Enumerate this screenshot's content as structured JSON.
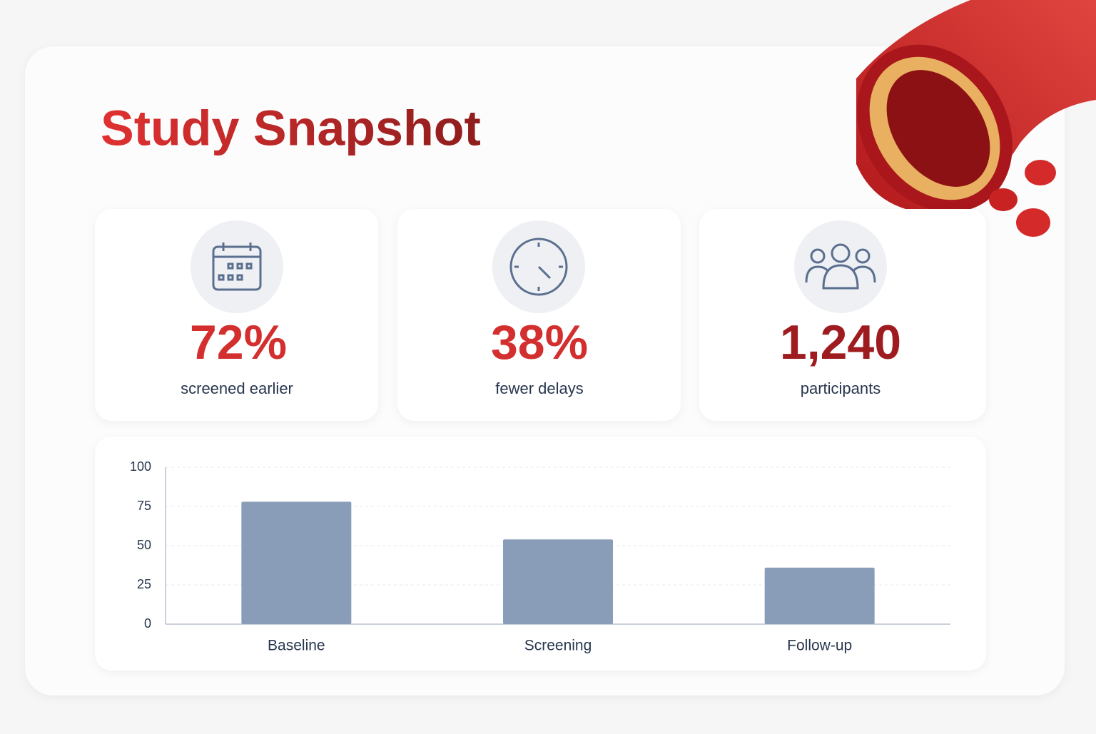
{
  "header": {
    "title": "Study Snapshot"
  },
  "stats": [
    {
      "value": "72%",
      "label": "screened earlier"
    },
    {
      "value": "38%",
      "label": "fewer delays"
    },
    {
      "value": "1,240",
      "label": "participants"
    }
  ],
  "chart_data": {
    "type": "bar",
    "categories": [
      "Baseline",
      "Screening",
      "Follow-up"
    ],
    "values": [
      78,
      54,
      36
    ],
    "color": "#8a9db8",
    "ylim": [
      0,
      100
    ],
    "yticks": [
      0,
      25,
      50,
      75,
      100
    ],
    "grid": true
  }
}
